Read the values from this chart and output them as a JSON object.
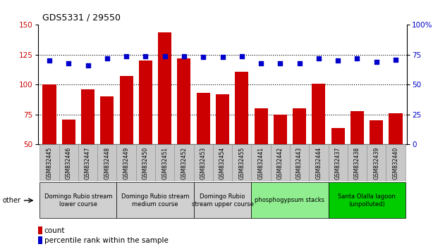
{
  "title": "GDS5331 / 29550",
  "samples": [
    "GSM832445",
    "GSM832446",
    "GSM832447",
    "GSM832448",
    "GSM832449",
    "GSM832450",
    "GSM832451",
    "GSM832452",
    "GSM832453",
    "GSM832454",
    "GSM832455",
    "GSM832441",
    "GSM832442",
    "GSM832443",
    "GSM832444",
    "GSM832437",
    "GSM832438",
    "GSM832439",
    "GSM832440"
  ],
  "counts": [
    100,
    71,
    96,
    90,
    107,
    120,
    144,
    122,
    93,
    92,
    111,
    80,
    75,
    80,
    101,
    64,
    78,
    70,
    76
  ],
  "percentiles": [
    70,
    68,
    66,
    72,
    74,
    74,
    74,
    74,
    73,
    73,
    74,
    68,
    68,
    68,
    72,
    70,
    72,
    69,
    71
  ],
  "bar_color": "#cc0000",
  "dot_color": "#0000cc",
  "ylim_left": [
    50,
    150
  ],
  "ylim_right": [
    0,
    100
  ],
  "yticks_left": [
    50,
    75,
    100,
    125,
    150
  ],
  "yticks_right": [
    0,
    25,
    50,
    75,
    100
  ],
  "groups": [
    {
      "label": "Domingo Rubio stream\nlower course",
      "start": 0,
      "end": 4,
      "color": "#d0d0d0"
    },
    {
      "label": "Domingo Rubio stream\nmedium course",
      "start": 4,
      "end": 8,
      "color": "#d0d0d0"
    },
    {
      "label": "Domingo Rubio\nstream upper course",
      "start": 8,
      "end": 11,
      "color": "#d0d0d0"
    },
    {
      "label": "phosphogypsum stacks",
      "start": 11,
      "end": 15,
      "color": "#90ee90"
    },
    {
      "label": "Santa Olalla lagoon\n(unpolluted)",
      "start": 15,
      "end": 19,
      "color": "#00cc00"
    }
  ],
  "other_label": "other",
  "legend_count_label": "count",
  "legend_pct_label": "percentile rank within the sample",
  "grid_dotted_values": [
    75,
    100,
    125
  ],
  "tick_label_fontsize": 5.5,
  "group_label_fontsize": 6.0
}
